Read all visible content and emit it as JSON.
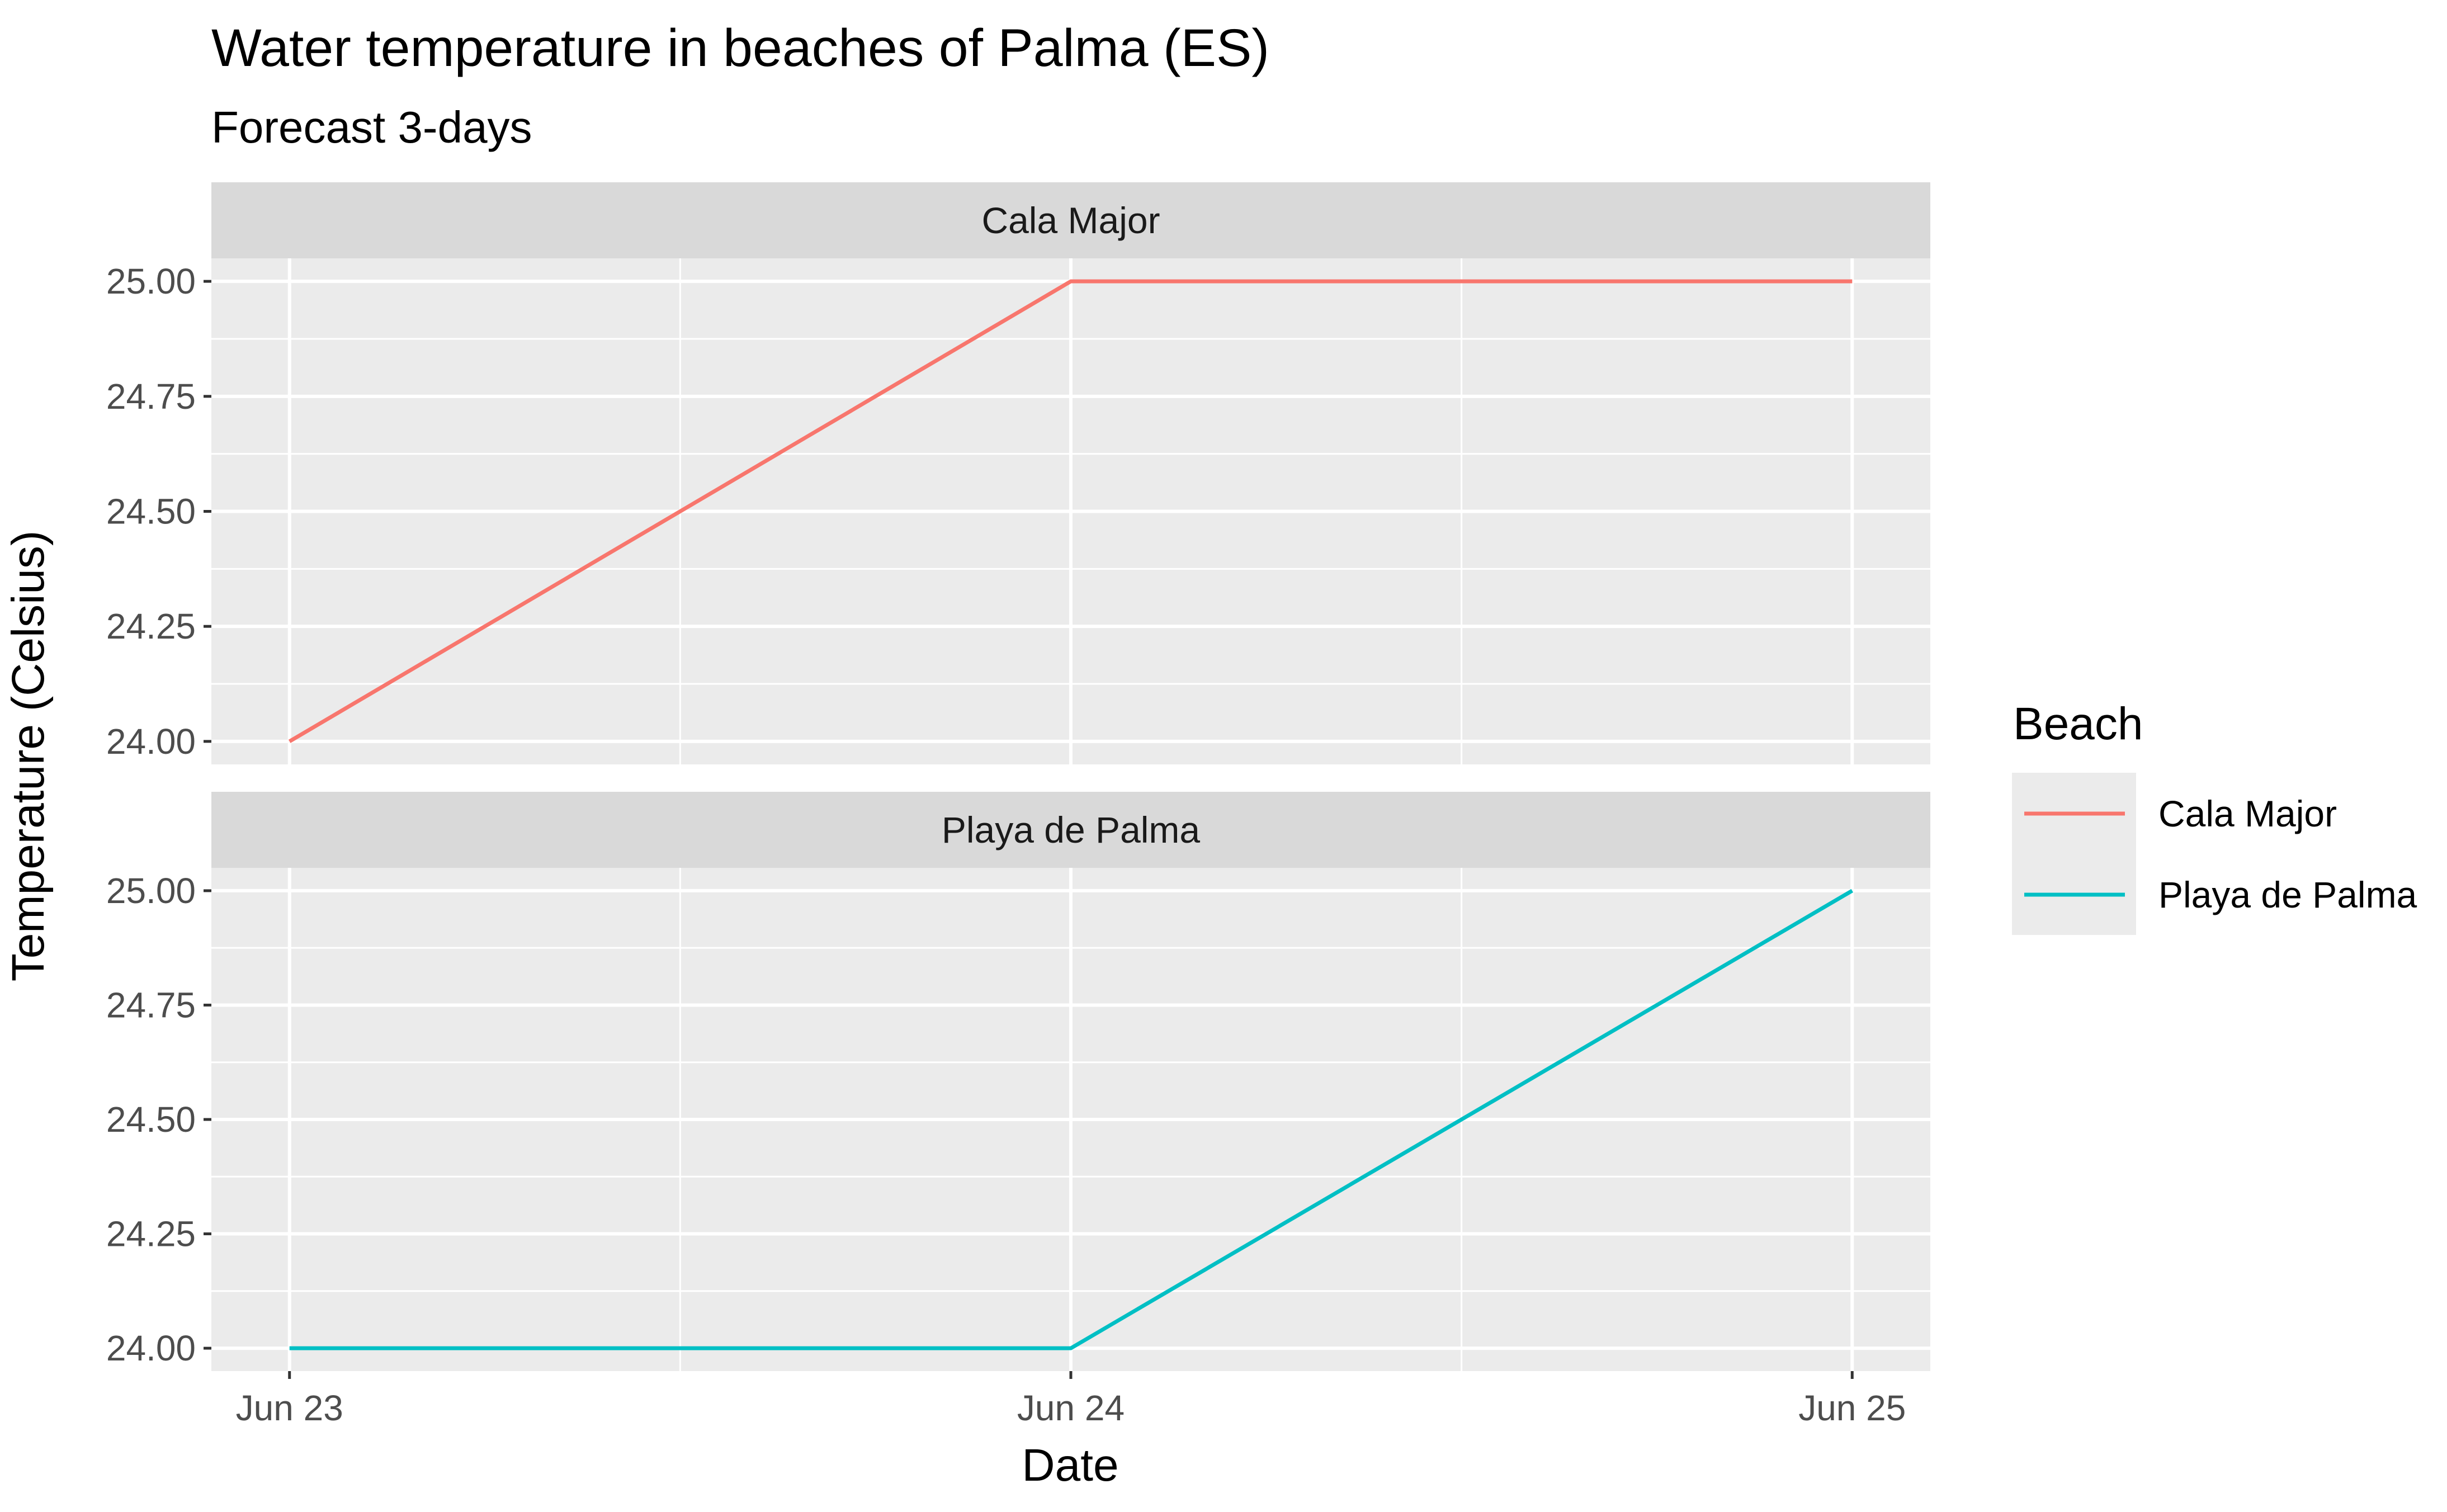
{
  "chart_data": {
    "type": "line",
    "title": "Water temperature in beaches of Palma (ES)",
    "subtitle": "Forecast 3-days",
    "xlabel": "Date",
    "ylabel": "Temperature (Celsius)",
    "x": [
      "Jun 23",
      "Jun 24",
      "Jun 25"
    ],
    "x_ticks": [
      "Jun 23",
      "Jun 24",
      "Jun 25"
    ],
    "y_ticks": [
      "24.00",
      "24.25",
      "24.50",
      "24.75",
      "25.00"
    ],
    "ylim": [
      23.95,
      25.05
    ],
    "grid": true,
    "facets": [
      "Cala Major",
      "Playa de Palma"
    ],
    "legend": {
      "title": "Beach",
      "position": "right"
    },
    "series": [
      {
        "name": "Cala Major",
        "color": "#F8766D",
        "values": [
          24.0,
          25.0,
          25.0
        ]
      },
      {
        "name": "Playa de Palma",
        "color": "#00BFC4",
        "values": [
          24.0,
          24.0,
          25.0
        ]
      }
    ]
  }
}
